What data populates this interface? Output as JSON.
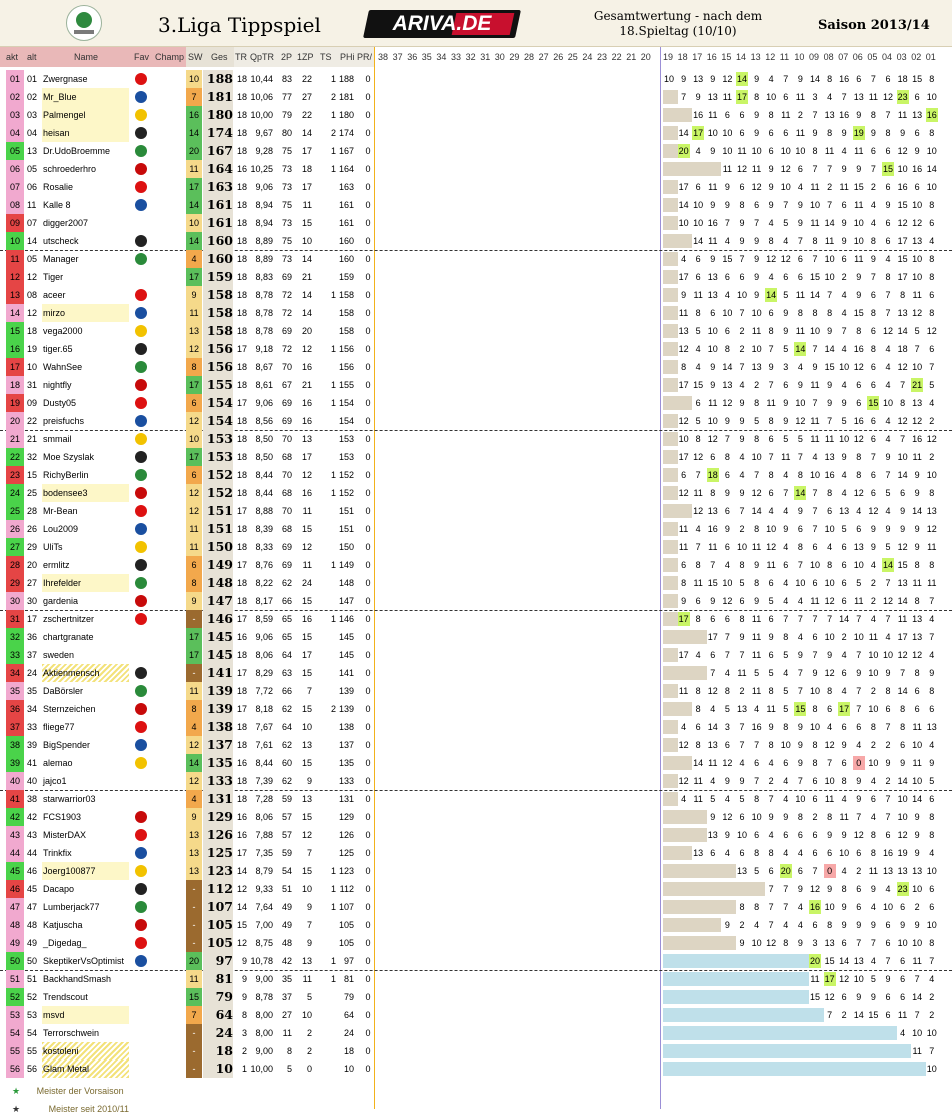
{
  "header": {
    "title": "3.Liga Tippspiel",
    "brand": "ARIVA.DE",
    "subtitle_line1": "Gesamtwertung - nach dem",
    "subtitle_line2": "18.Spieltag (10/10)",
    "saison": "Saison 2013/14"
  },
  "columns": {
    "akt": "akt",
    "alt": "alt",
    "name": "Name",
    "fav": "Fav",
    "champ": "Champ",
    "sw": "SW",
    "ges": "Ges",
    "tr": "TR",
    "qptr": "QpTR",
    "p2": "2P",
    "zp": "1ZP",
    "ts": "TS",
    "phi": "PHi",
    "pr": "PR/",
    "rounds_left": [
      "38",
      "37",
      "36",
      "35",
      "34",
      "33",
      "32",
      "31",
      "30",
      "29",
      "28",
      "27",
      "26",
      "25",
      "24",
      "23",
      "22",
      "21",
      "20"
    ],
    "rounds_right": [
      "19",
      "18",
      "17",
      "16",
      "15",
      "14",
      "13",
      "12",
      "11",
      "10",
      "09",
      "08",
      "07",
      "06",
      "05",
      "04",
      "03",
      "02",
      "01"
    ]
  },
  "colors": {
    "akt_pink": "#f1a9cf",
    "akt_green": "#31c831",
    "akt_red": "#e63b3b",
    "sw_green": "#5bbf5b",
    "sw_orange": "#f2a84c",
    "sw_yellow": "#f5d98a",
    "highlight": "#c9f566",
    "frozen": "#ddd5c3",
    "inactive": "#bfe0ea"
  },
  "rows": [
    {
      "akt": "01",
      "alt": "01",
      "name": "Zwergnase",
      "sw": "10",
      "ges": "188",
      "tr": "18",
      "qptr": "10,44",
      "p2": "83",
      "zp": "22",
      "ts": "1",
      "phi": "188",
      "pr": "0",
      "pts": "10 9 13 9 12 14 9 4 7 9 14 8 16 6 7 6 18 15 8",
      "hi": [
        5
      ]
    },
    {
      "akt": "02",
      "alt": "02",
      "name": "Mr_Blue",
      "sw": "7",
      "ges": "181",
      "tr": "18",
      "qptr": "10,06",
      "p2": "77",
      "zp": "27",
      "ts": "2",
      "phi": "181",
      "pr": "0",
      "pts": "7 9 13 11 17 8 10 6 11 3 4 7 13 11 12 23 6 10",
      "hi": [
        4,
        15
      ]
    },
    {
      "akt": "03",
      "alt": "03",
      "name": "Palmengel",
      "sw": "16",
      "ges": "180",
      "tr": "18",
      "qptr": "10,00",
      "p2": "79",
      "zp": "22",
      "ts": "1",
      "phi": "180",
      "pr": "0",
      "pts": "16 11 6 6 9 8 11 2 7 13 16 9 8 7 11 13 16",
      "hi": [
        16
      ]
    },
    {
      "akt": "04",
      "alt": "04",
      "name": "heisan",
      "sw": "14",
      "ges": "174",
      "tr": "18",
      "qptr": "9,67",
      "p2": "80",
      "zp": "14",
      "ts": "2",
      "phi": "174",
      "pr": "0",
      "pts": "14 17 10 10 6 9 6 6 11 9 8 9 19 9 8 9 6 8",
      "hi": [
        1,
        12
      ]
    },
    {
      "akt": "05",
      "alt": "13",
      "name": "Dr.UdoBroemme",
      "sw": "20",
      "ges": "167",
      "tr": "18",
      "qptr": "9,28",
      "p2": "75",
      "zp": "17",
      "ts": "1",
      "phi": "167",
      "pr": "0",
      "pts": "20 4 9 10 11 10 6 10 10 8 11 4 11 6 6 12 9 10",
      "hi": [
        0
      ]
    },
    {
      "akt": "06",
      "alt": "05",
      "name": "schroederhro",
      "sw": "11",
      "ges": "164",
      "tr": "16",
      "qptr": "10,25",
      "p2": "73",
      "zp": "18",
      "ts": "1",
      "phi": "164",
      "pr": "0",
      "pts": "11 12 11 9 12 6 7 7 9 9 7 15 10 16 14",
      "hi": [
        11
      ]
    },
    {
      "akt": "07",
      "alt": "06",
      "name": "Rosalie",
      "sw": "17",
      "ges": "163",
      "tr": "18",
      "qptr": "9,06",
      "p2": "73",
      "zp": "17",
      "ts": "",
      "phi": "163",
      "pr": "0",
      "pts": "17 6 11 9 6 12 9 10 4 11 2 11 15 2 6 16 6 10",
      "hi": []
    },
    {
      "akt": "08",
      "alt": "11",
      "name": "Kalle 8",
      "sw": "14",
      "ges": "161",
      "tr": "18",
      "qptr": "8,94",
      "p2": "75",
      "zp": "11",
      "ts": "",
      "phi": "161",
      "pr": "0",
      "pts": "14 10 9 9 8 6 9 7 9 10 7 6 11 4 9 15 10 8",
      "hi": []
    },
    {
      "akt": "09",
      "alt": "07",
      "name": "digger2007",
      "sw": "10",
      "ges": "161",
      "tr": "18",
      "qptr": "8,94",
      "p2": "73",
      "zp": "15",
      "ts": "",
      "phi": "161",
      "pr": "0",
      "pts": "10 10 16 7 9 7 4 5 9 11 14 9 10 4 6 12 12 6",
      "hi": []
    },
    {
      "akt": "10",
      "alt": "14",
      "name": "utscheck",
      "sw": "14",
      "ges": "160",
      "tr": "18",
      "qptr": "8,89",
      "p2": "75",
      "zp": "10",
      "ts": "",
      "phi": "160",
      "pr": "0",
      "pts": "14 11 4 9 9 8 4 7 8 11 9 10 8 6 17 13 4",
      "hi": []
    },
    {
      "akt": "11",
      "alt": "05",
      "name": "Manager",
      "sw": "4",
      "ges": "160",
      "tr": "18",
      "qptr": "8,89",
      "p2": "73",
      "zp": "14",
      "ts": "",
      "phi": "160",
      "pr": "0",
      "pts": "4 6 9 15 7 9 12 12 6 7 10 6 11 9 4 15 10 8",
      "hi": []
    },
    {
      "akt": "12",
      "alt": "12",
      "name": "Tiger",
      "sw": "17",
      "ges": "159",
      "tr": "18",
      "qptr": "8,83",
      "p2": "69",
      "zp": "21",
      "ts": "",
      "phi": "159",
      "pr": "0",
      "pts": "17 6 13 6 6 9 4 6 6 15 10 2 9 7 8 17 10 8",
      "hi": []
    },
    {
      "akt": "13",
      "alt": "08",
      "name": "aceer",
      "sw": "9",
      "ges": "158",
      "tr": "18",
      "qptr": "8,78",
      "p2": "72",
      "zp": "14",
      "ts": "1",
      "phi": "158",
      "pr": "0",
      "pts": "9 11 13 4 10 9 14 5 11 14 7 4 9 6 7 8 11 6",
      "hi": [
        6
      ]
    },
    {
      "akt": "14",
      "alt": "12",
      "name": "mirzo",
      "sw": "11",
      "ges": "158",
      "tr": "18",
      "qptr": "8,78",
      "p2": "72",
      "zp": "14",
      "ts": "",
      "phi": "158",
      "pr": "0",
      "pts": "11 8 6 10 7 10 6 9 8 8 8 4 15 8 7 13 12 8",
      "hi": []
    },
    {
      "akt": "15",
      "alt": "18",
      "name": "vega2000",
      "sw": "13",
      "ges": "158",
      "tr": "18",
      "qptr": "8,78",
      "p2": "69",
      "zp": "20",
      "ts": "",
      "phi": "158",
      "pr": "0",
      "pts": "13 5 10 6 2 11 8 9 11 10 9 7 8 6 12 14 5 12",
      "hi": []
    },
    {
      "akt": "16",
      "alt": "19",
      "name": "tiger.65",
      "sw": "12",
      "ges": "156",
      "tr": "17",
      "qptr": "9,18",
      "p2": "72",
      "zp": "12",
      "ts": "1",
      "phi": "156",
      "pr": "0",
      "pts": "12 4 10 8 2 10 7 5 14 7 14 4 16 8 4 18 7 6",
      "hi": [
        8
      ]
    },
    {
      "akt": "17",
      "alt": "10",
      "name": "WahnSee",
      "sw": "8",
      "ges": "156",
      "tr": "18",
      "qptr": "8,67",
      "p2": "70",
      "zp": "16",
      "ts": "",
      "phi": "156",
      "pr": "0",
      "pts": "8 4 9 14 7 13 9 3 4 9 15 10 12 6 4 12 10 7",
      "hi": []
    },
    {
      "akt": "18",
      "alt": "31",
      "name": "nightfly",
      "sw": "17",
      "ges": "155",
      "tr": "18",
      "qptr": "8,61",
      "p2": "67",
      "zp": "21",
      "ts": "1",
      "phi": "155",
      "pr": "0",
      "pts": "17 15 9 13 4 2 7 6 9 11 9 4 6 6 4 7 21 5",
      "hi": [
        16
      ]
    },
    {
      "akt": "19",
      "alt": "09",
      "name": "Dusty05",
      "sw": "6",
      "ges": "154",
      "tr": "17",
      "qptr": "9,06",
      "p2": "69",
      "zp": "16",
      "ts": "1",
      "phi": "154",
      "pr": "0",
      "pts": "6 11 12 9 8 11 9 10 7 9 9 6 15 10 8 13 4",
      "hi": [
        12
      ]
    },
    {
      "akt": "20",
      "alt": "22",
      "name": "preisfuchs",
      "sw": "12",
      "ges": "154",
      "tr": "18",
      "qptr": "8,56",
      "p2": "69",
      "zp": "16",
      "ts": "",
      "phi": "154",
      "pr": "0",
      "pts": "12 5 10 9 9 5 8 9 12 11 7 5 16 6 4 12 12 2",
      "hi": []
    },
    {
      "akt": "21",
      "alt": "21",
      "name": "smmail",
      "sw": "10",
      "ges": "153",
      "tr": "18",
      "qptr": "8,50",
      "p2": "70",
      "zp": "13",
      "ts": "",
      "phi": "153",
      "pr": "0",
      "pts": "10 8 12 7 9 8 6 5 5 11 11 10 12 6 4 7 16 12",
      "hi": []
    },
    {
      "akt": "22",
      "alt": "32",
      "name": "Moe Szyslak",
      "sw": "17",
      "ges": "153",
      "tr": "18",
      "qptr": "8,50",
      "p2": "68",
      "zp": "17",
      "ts": "",
      "phi": "153",
      "pr": "0",
      "pts": "17 12 6 8 4 10 7 11 7 4 13 9 8 7 9 10 11 2",
      "hi": []
    },
    {
      "akt": "23",
      "alt": "15",
      "name": "RichyBerlin",
      "sw": "6",
      "ges": "152",
      "tr": "18",
      "qptr": "8,44",
      "p2": "70",
      "zp": "12",
      "ts": "1",
      "phi": "152",
      "pr": "0",
      "pts": "6 7 18 6 4 7 8 4 8 10 16 4 8 6 7 14 9 10",
      "hi": [
        2
      ]
    },
    {
      "akt": "24",
      "alt": "25",
      "name": "bodensee3",
      "sw": "12",
      "ges": "152",
      "tr": "18",
      "qptr": "8,44",
      "p2": "68",
      "zp": "16",
      "ts": "1",
      "phi": "152",
      "pr": "0",
      "pts": "12 11 8 9 9 12 6 7 14 7 8 4 12 6 5 6 9 8",
      "hi": [
        8
      ]
    },
    {
      "akt": "25",
      "alt": "28",
      "name": "Mr-Bean",
      "sw": "12",
      "ges": "151",
      "tr": "17",
      "qptr": "8,88",
      "p2": "70",
      "zp": "11",
      "ts": "",
      "phi": "151",
      "pr": "0",
      "pts": "12 13 6 7 14 4 4 9 7 6 13 4 12 4 9 14 13",
      "hi": []
    },
    {
      "akt": "26",
      "alt": "26",
      "name": "Lou2009",
      "sw": "11",
      "ges": "151",
      "tr": "18",
      "qptr": "8,39",
      "p2": "68",
      "zp": "15",
      "ts": "",
      "phi": "151",
      "pr": "0",
      "pts": "11 4 16 9 2 8 10 9 6 7 10 5 6 9 9 9 9 12",
      "hi": []
    },
    {
      "akt": "27",
      "alt": "29",
      "name": "UliTs",
      "sw": "11",
      "ges": "150",
      "tr": "18",
      "qptr": "8,33",
      "p2": "69",
      "zp": "12",
      "ts": "",
      "phi": "150",
      "pr": "0",
      "pts": "11 7 11 6 10 11 12 4 8 6 4 6 13 9 5 12 9 11",
      "hi": []
    },
    {
      "akt": "28",
      "alt": "20",
      "name": "ermlitz",
      "sw": "6",
      "ges": "149",
      "tr": "17",
      "qptr": "8,76",
      "p2": "69",
      "zp": "11",
      "ts": "1",
      "phi": "149",
      "pr": "0",
      "pts": "6 8 7 4 8 9 11 6 7 10 8 6 10 4 14 15 8 8",
      "hi": [
        14
      ]
    },
    {
      "akt": "29",
      "alt": "27",
      "name": "Ihrefelder",
      "sw": "8",
      "ges": "148",
      "tr": "18",
      "qptr": "8,22",
      "p2": "62",
      "zp": "24",
      "ts": "",
      "phi": "148",
      "pr": "0",
      "pts": "8 11 15 10 5 8 6 4 10 6 10 6 5 2 7 13 11 11",
      "hi": []
    },
    {
      "akt": "30",
      "alt": "30",
      "name": "gardenia",
      "sw": "9",
      "ges": "147",
      "tr": "18",
      "qptr": "8,17",
      "p2": "66",
      "zp": "15",
      "ts": "",
      "phi": "147",
      "pr": "0",
      "pts": "9 6 9 12 6 9 5 4 4 11 12 6 11 2 12 14 8 7",
      "hi": []
    },
    {
      "akt": "31",
      "alt": "17",
      "name": "zschertnitzer",
      "sw": "-",
      "ges": "146",
      "tr": "17",
      "qptr": "8,59",
      "p2": "65",
      "zp": "16",
      "ts": "1",
      "phi": "146",
      "pr": "0",
      "pts": "17 8 6 6 8 11 6 7 7 7 7 14 7 4 7 11 13 4",
      "hi": [
        0
      ]
    },
    {
      "akt": "32",
      "alt": "36",
      "name": "chartgranate",
      "sw": "17",
      "ges": "145",
      "tr": "16",
      "qptr": "9,06",
      "p2": "65",
      "zp": "15",
      "ts": "",
      "phi": "145",
      "pr": "0",
      "pts": "17 7 9 11 9 8 4 6 10 2 10 11 4 17 13 7",
      "hi": []
    },
    {
      "akt": "33",
      "alt": "37",
      "name": "sweden",
      "sw": "17",
      "ges": "145",
      "tr": "18",
      "qptr": "8,06",
      "p2": "64",
      "zp": "17",
      "ts": "",
      "phi": "145",
      "pr": "0",
      "pts": "17 4 6 7 7 11 6 5 9 7 9 4 7 10 10 12 12 4",
      "hi": []
    },
    {
      "akt": "34",
      "alt": "24",
      "name": "Aktienmensch",
      "sw": "-",
      "ges": "141",
      "tr": "17",
      "qptr": "8,29",
      "p2": "63",
      "zp": "15",
      "ts": "",
      "phi": "141",
      "pr": "0",
      "pts": "7 4 11 5 5 4 7 9 12 6 9 10 9 7 8 9",
      "hi": []
    },
    {
      "akt": "35",
      "alt": "35",
      "name": "DaBörsler",
      "sw": "11",
      "ges": "139",
      "tr": "18",
      "qptr": "7,72",
      "p2": "66",
      "zp": "7",
      "ts": "",
      "phi": "139",
      "pr": "0",
      "pts": "11 8 12 8 2 11 8 5 7 10 8 4 7 2 8 14 6 8",
      "hi": []
    },
    {
      "akt": "36",
      "alt": "34",
      "name": "Sternzeichen",
      "sw": "8",
      "ges": "139",
      "tr": "17",
      "qptr": "8,18",
      "p2": "62",
      "zp": "15",
      "ts": "2",
      "phi": "139",
      "pr": "0",
      "pts": "8 4 5 13 4 11 5 15 8 6 17 7 10 6 8 6 6",
      "hi": [
        7,
        10
      ]
    },
    {
      "akt": "37",
      "alt": "33",
      "name": "fliege77",
      "sw": "4",
      "ges": "138",
      "tr": "18",
      "qptr": "7,67",
      "p2": "64",
      "zp": "10",
      "ts": "",
      "phi": "138",
      "pr": "0",
      "pts": "4 6 14 3 7 16 9 8 9 10 4 6 6 8 7 8 11 13",
      "hi": []
    },
    {
      "akt": "38",
      "alt": "39",
      "name": "BigSpender",
      "sw": "12",
      "ges": "137",
      "tr": "18",
      "qptr": "7,61",
      "p2": "62",
      "zp": "13",
      "ts": "",
      "phi": "137",
      "pr": "0",
      "pts": "12 8 13 6 7 7 8 10 9 8 12 9 4 2 2 6 10 4",
      "hi": []
    },
    {
      "akt": "39",
      "alt": "41",
      "name": "alemao",
      "sw": "14",
      "ges": "135",
      "tr": "16",
      "qptr": "8,44",
      "p2": "60",
      "zp": "15",
      "ts": "",
      "phi": "135",
      "pr": "0",
      "pts": "14 11 12 4 6 4 6 9 8 7 6 0 10 9 9 11 9",
      "hi": []
    },
    {
      "akt": "40",
      "alt": "40",
      "name": "jajco1",
      "sw": "12",
      "ges": "133",
      "tr": "18",
      "qptr": "7,39",
      "p2": "62",
      "zp": "9",
      "ts": "",
      "phi": "133",
      "pr": "0",
      "pts": "12 11 4 9 9 7 2 4 7 6 10 8 9 4 2 14 10 5",
      "hi": []
    },
    {
      "akt": "41",
      "alt": "38",
      "name": "starwarrior03",
      "sw": "4",
      "ges": "131",
      "tr": "18",
      "qptr": "7,28",
      "p2": "59",
      "zp": "13",
      "ts": "",
      "phi": "131",
      "pr": "0",
      "pts": "4 11 5 4 5 8 7 4 10 6 11 4 9 6 7 10 14 6",
      "hi": []
    },
    {
      "akt": "42",
      "alt": "42",
      "name": "FCS1903",
      "sw": "9",
      "ges": "129",
      "tr": "16",
      "qptr": "8,06",
      "p2": "57",
      "zp": "15",
      "ts": "",
      "phi": "129",
      "pr": "0",
      "pts": "9 12 6 10 9 9 8 2 8 11 7 4 7 10 9 8",
      "hi": []
    },
    {
      "akt": "43",
      "alt": "43",
      "name": "MisterDAX",
      "sw": "13",
      "ges": "126",
      "tr": "16",
      "qptr": "7,88",
      "p2": "57",
      "zp": "12",
      "ts": "",
      "phi": "126",
      "pr": "0",
      "pts": "13 9 10 6 4 6 6 6 9 9 12 8 6 12 9 8",
      "hi": []
    },
    {
      "akt": "44",
      "alt": "44",
      "name": "Trinkfix",
      "sw": "13",
      "ges": "125",
      "tr": "17",
      "qptr": "7,35",
      "p2": "59",
      "zp": "7",
      "ts": "",
      "phi": "125",
      "pr": "0",
      "pts": "13 6 4 6 8 8 4 4 6 6 10 6 8 16 19 9 4",
      "hi": []
    },
    {
      "akt": "45",
      "alt": "46",
      "name": "Joerg100877",
      "sw": "13",
      "ges": "123",
      "tr": "14",
      "qptr": "8,79",
      "p2": "54",
      "zp": "15",
      "ts": "1",
      "phi": "123",
      "pr": "0",
      "pts": "13 5 6 20 6 7 0 4 2 11 13 13 13 10",
      "hi": [
        3
      ]
    },
    {
      "akt": "46",
      "alt": "45",
      "name": "Dacapo",
      "sw": "-",
      "ges": "112",
      "tr": "12",
      "qptr": "9,33",
      "p2": "51",
      "zp": "10",
      "ts": "1",
      "phi": "112",
      "pr": "0",
      "pts": "7 7 9 12 9 8 6 9 4 23 10 6",
      "hi": [
        9
      ]
    },
    {
      "akt": "47",
      "alt": "47",
      "name": "Lumberjack77",
      "sw": "-",
      "ges": "107",
      "tr": "14",
      "qptr": "7,64",
      "p2": "49",
      "zp": "9",
      "ts": "1",
      "phi": "107",
      "pr": "0",
      "pts": "8 8 7 7 4 16 10 9 6 4 10 6 2 6",
      "hi": [
        5
      ]
    },
    {
      "akt": "48",
      "alt": "48",
      "name": "Katjuscha",
      "sw": "-",
      "ges": "105",
      "tr": "15",
      "qptr": "7,00",
      "p2": "49",
      "zp": "7",
      "ts": "",
      "phi": "105",
      "pr": "0",
      "pts": "9 2 4 7 4 4 6 8 9 9 9 6 9 9 10",
      "hi": []
    },
    {
      "akt": "49",
      "alt": "49",
      "name": "_Digedag_",
      "sw": "-",
      "ges": "105",
      "tr": "12",
      "qptr": "8,75",
      "p2": "48",
      "zp": "9",
      "ts": "",
      "phi": "105",
      "pr": "0",
      "pts": "9 10 12 8 9 3 13 6 7 7 6 10 10 8",
      "hi": []
    },
    {
      "akt": "50",
      "alt": "50",
      "name": "SkeptikerVsOptimist",
      "sw": "20",
      "ges": "97",
      "tr": "9",
      "qptr": "10,78",
      "p2": "42",
      "zp": "13",
      "ts": "1",
      "phi": "97",
      "pr": "0",
      "pts": "20 15 14 13 4 7 6 11 7",
      "hi": [
        0
      ]
    },
    {
      "akt": "51",
      "alt": "51",
      "name": "BackhandSmash",
      "sw": "11",
      "ges": "81",
      "tr": "9",
      "qptr": "9,00",
      "p2": "35",
      "zp": "11",
      "ts": "1",
      "phi": "81",
      "pr": "0",
      "pts": "11 17 12 10 5 9 6 7 4",
      "hi": [
        1
      ]
    },
    {
      "akt": "52",
      "alt": "52",
      "name": "Trendscout",
      "sw": "15",
      "ges": "79",
      "tr": "9",
      "qptr": "8,78",
      "p2": "37",
      "zp": "5",
      "ts": "",
      "phi": "79",
      "pr": "0",
      "pts": "15 12 6 9 9 6 6 14 2",
      "hi": []
    },
    {
      "akt": "53",
      "alt": "53",
      "name": "msvd",
      "sw": "7",
      "ges": "64",
      "tr": "8",
      "qptr": "8,00",
      "p2": "27",
      "zp": "10",
      "ts": "",
      "phi": "64",
      "pr": "0",
      "pts": "7 2 14 15 6 11 7 2",
      "hi": []
    },
    {
      "akt": "54",
      "alt": "54",
      "name": "Terrorschwein",
      "sw": "-",
      "ges": "24",
      "tr": "3",
      "qptr": "8,00",
      "p2": "11",
      "zp": "2",
      "ts": "",
      "phi": "24",
      "pr": "0",
      "pts": "4 10 10",
      "hi": []
    },
    {
      "akt": "55",
      "alt": "55",
      "name": "kostoleni",
      "sw": "-",
      "ges": "18",
      "tr": "2",
      "qptr": "9,00",
      "p2": "8",
      "zp": "2",
      "ts": "",
      "phi": "18",
      "pr": "0",
      "pts": "11 7",
      "hi": []
    },
    {
      "akt": "56",
      "alt": "56",
      "name": "Glam Metal",
      "sw": "-",
      "ges": "10",
      "tr": "1",
      "qptr": "10,00",
      "p2": "5",
      "zp": "0",
      "ts": "",
      "phi": "10",
      "pr": "0",
      "pts": "10",
      "hi": []
    }
  ],
  "legend": {
    "star_green": "Meister der Vorsaison",
    "star_black": "Meister seit 2010/11"
  }
}
